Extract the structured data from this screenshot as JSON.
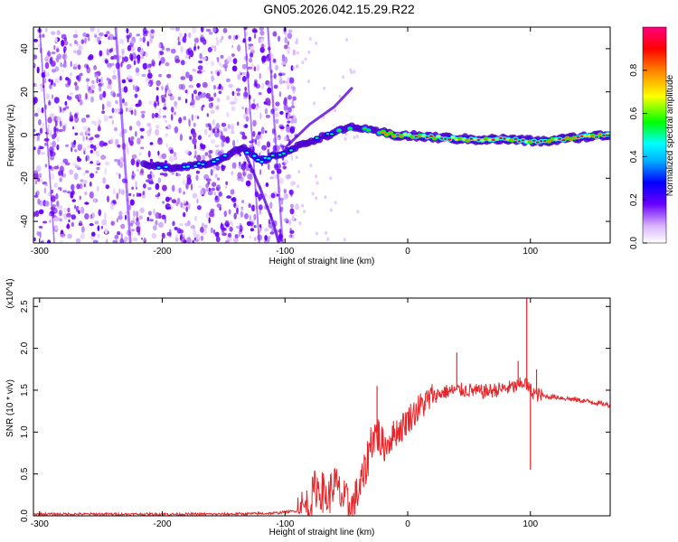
{
  "title": "GN05.2026.042.15.29.R22",
  "chart_data": [
    {
      "type": "heatmap",
      "xlabel": "Height of straight line (km)",
      "ylabel": "Frequency (Hz)",
      "xlim": [
        -305,
        165
      ],
      "ylim": [
        -50,
        50
      ],
      "xticks": [
        -300,
        -200,
        -100,
        0,
        100
      ],
      "yticks": [
        -40,
        -20,
        0,
        20,
        40
      ],
      "colorbar": {
        "label": "Normalized spectral amplitude",
        "range": [
          0,
          1
        ],
        "ticks": [
          0.0,
          0.2,
          0.4,
          0.6,
          0.8
        ],
        "tick_labels": [
          "0.0",
          "0.2",
          "0.4",
          "0.6",
          "0.8"
        ],
        "colormap": [
          "#ffffff",
          "#d9b3ff",
          "#6a00ff",
          "#0000ff",
          "#00ffff",
          "#00ff00",
          "#ffff00",
          "#ff8000",
          "#ff0000",
          "#ff0080"
        ]
      },
      "signal_track": [
        {
          "x": -215,
          "y": -14
        },
        {
          "x": -190,
          "y": -15
        },
        {
          "x": -160,
          "y": -13
        },
        {
          "x": -135,
          "y": -6
        },
        {
          "x": -120,
          "y": -12
        },
        {
          "x": -100,
          "y": -8
        },
        {
          "x": -80,
          "y": -3
        },
        {
          "x": -60,
          "y": 1
        },
        {
          "x": -45,
          "y": 4
        },
        {
          "x": -30,
          "y": 2
        },
        {
          "x": -10,
          "y": 0
        },
        {
          "x": 20,
          "y": -1
        },
        {
          "x": 50,
          "y": -2
        },
        {
          "x": 80,
          "y": -2
        },
        {
          "x": 110,
          "y": -3
        },
        {
          "x": 140,
          "y": -1
        },
        {
          "x": 165,
          "y": 0
        }
      ],
      "upper_branch": [
        {
          "x": -100,
          "y": -6
        },
        {
          "x": -80,
          "y": 5
        },
        {
          "x": -60,
          "y": 13
        },
        {
          "x": -45,
          "y": 22
        }
      ],
      "lower_branch": [
        {
          "x": -135,
          "y": -5
        },
        {
          "x": -120,
          "y": -25
        },
        {
          "x": -110,
          "y": -40
        },
        {
          "x": -105,
          "y": -50
        }
      ]
    },
    {
      "type": "line",
      "xlabel": "Height of straight line (km)",
      "ylabel": "SNR (10 * v/v)",
      "multiplier": "(x10^4)",
      "xlim": [
        -305,
        165
      ],
      "ylim": [
        0,
        2.6
      ],
      "xticks": [
        -300,
        -200,
        -100,
        0,
        100
      ],
      "yticks": [
        0.0,
        0.5,
        1.0,
        1.5,
        2.0,
        2.5
      ],
      "ytick_labels": [
        "0.0",
        "0.5",
        "1.0",
        "1.5",
        "2.0",
        "2.5"
      ],
      "color": "#e8262a",
      "x": [
        -305,
        -250,
        -200,
        -150,
        -110,
        -90,
        -80,
        -75,
        -70,
        -65,
        -60,
        -55,
        -50,
        -45,
        -40,
        -35,
        -30,
        -25,
        -20,
        -15,
        -10,
        -5,
        0,
        10,
        20,
        30,
        40,
        50,
        60,
        70,
        80,
        90,
        95,
        100,
        105,
        110,
        120,
        130,
        140,
        150,
        165
      ],
      "y": [
        0.02,
        0.02,
        0.02,
        0.02,
        0.03,
        0.06,
        0.12,
        0.35,
        0.3,
        0.2,
        0.4,
        0.25,
        0.15,
        0.1,
        0.3,
        0.5,
        0.9,
        1.0,
        0.8,
        0.9,
        1.0,
        1.05,
        1.15,
        1.3,
        1.42,
        1.48,
        1.5,
        1.5,
        1.48,
        1.5,
        1.52,
        1.55,
        1.6,
        1.5,
        1.45,
        1.43,
        1.42,
        1.4,
        1.38,
        1.36,
        1.32
      ],
      "spikes": [
        {
          "x": -25,
          "y": 1.55
        },
        {
          "x": 40,
          "y": 1.95
        },
        {
          "x": 97,
          "y": 2.6
        },
        {
          "x": 90,
          "y": 1.85
        },
        {
          "x": 100,
          "y": 0.55
        },
        {
          "x": 105,
          "y": 1.75
        }
      ]
    }
  ]
}
